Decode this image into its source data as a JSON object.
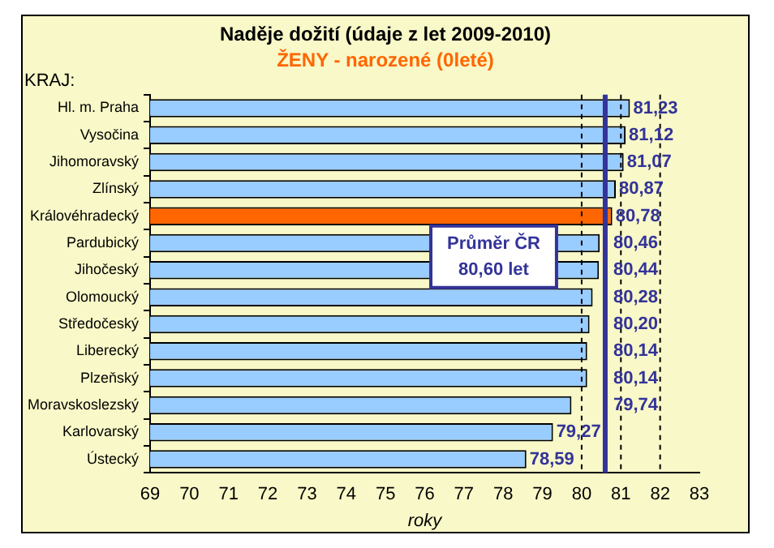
{
  "chart_data": {
    "type": "bar",
    "orientation": "horizontal",
    "title": "Naděje dožití (údaje z  let 2009-2010)",
    "subtitle": "ŽENY - narozené (0leté)",
    "xlabel": "roky",
    "ylabel": "KRAJ:",
    "categories": [
      "Hl. m. Praha",
      "Vysočina",
      "Jihomoravský",
      "Zlínský",
      "Královéhradecký",
      "Pardubický",
      "Jihočeský",
      "Olomoucký",
      "Středočeský",
      "Liberecký",
      "Plzeňský",
      "Moravskoslezský",
      "Karlovarský",
      "Ústecký"
    ],
    "values": [
      81.23,
      81.12,
      81.07,
      80.87,
      80.78,
      80.46,
      80.44,
      80.28,
      80.2,
      80.14,
      80.14,
      79.74,
      79.27,
      78.59
    ],
    "value_labels": [
      "81,23",
      "81,12",
      "81,07",
      "80,87",
      "80,78",
      "80,46",
      "80,44",
      "80,28",
      "80,20",
      "80,14",
      "80,14",
      "79,74",
      "79,27",
      "78,59"
    ],
    "colors": [
      "#99ccff",
      "#99ccff",
      "#99ccff",
      "#99ccff",
      "#ff6600",
      "#99ccff",
      "#99ccff",
      "#99ccff",
      "#99ccff",
      "#99ccff",
      "#99ccff",
      "#99ccff",
      "#99ccff",
      "#99ccff"
    ],
    "xlim": [
      69,
      83
    ],
    "xticks": [
      69,
      70,
      71,
      72,
      73,
      74,
      75,
      76,
      77,
      78,
      79,
      80,
      81,
      82,
      83
    ],
    "ref_lines": [
      {
        "axis": "x",
        "value": 80,
        "label": null,
        "line_style": "dashed",
        "color": "#000000"
      },
      {
        "axis": "x",
        "value": 81,
        "label": null,
        "line_style": "dashed",
        "color": "#000000"
      },
      {
        "axis": "x",
        "value": 82,
        "label": null,
        "line_style": "dashed",
        "color": "#000000"
      },
      {
        "axis": "x",
        "value": 80.6,
        "label": "Průměr ČR\n80,60 let",
        "line_style": "solid",
        "color": "#333399"
      }
    ],
    "grid": false,
    "legend": false
  }
}
